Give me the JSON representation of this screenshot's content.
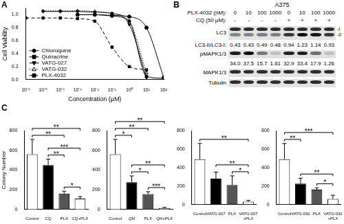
{
  "chart_data": [
    {
      "type": "line",
      "panel": "A",
      "x_label": "Concentration (µM)",
      "y_label": "Cell Viability",
      "log": "x",
      "grid": false,
      "legend": "bottom-left",
      "x": [
        1e-06,
        1e-05,
        0.0001,
        0.001,
        0.01,
        0.1,
        1,
        10,
        100
      ],
      "xlim": [
        1e-06,
        100
      ],
      "xticks": [
        {
          "value": 1e-06,
          "label": "10⁻⁶"
        },
        {
          "value": 1e-05,
          "label": "10⁻⁵"
        },
        {
          "value": 0.0001,
          "label": "10⁻⁴"
        },
        {
          "value": 0.001,
          "label": "10⁻³"
        },
        {
          "value": 0.01,
          "label": "10⁻²"
        },
        {
          "value": 0.1,
          "label": "10⁻¹"
        },
        {
          "value": 1,
          "label": "10⁰"
        },
        {
          "value": 10,
          "label": "10¹"
        },
        {
          "value": 100,
          "label": "10²"
        }
      ],
      "ylim": [
        0,
        1.1
      ],
      "yticks": [
        {
          "value": 0,
          "label": "0.0"
        },
        0.2,
        0.4,
        0.6,
        0.8,
        {
          "value": 1,
          "label": "1.0"
        }
      ],
      "series": [
        {
          "name": "Chloroquine",
          "color": "#000000",
          "marker": "circle",
          "line_style": "solid",
          "values": [
            null,
            null,
            null,
            1.0,
            1.0,
            0.99,
            0.97,
            0.8,
            0.03
          ]
        },
        {
          "name": "Quinacrine",
          "color": "#000000",
          "marker": "square",
          "line_style": "solid",
          "values": [
            null,
            null,
            null,
            1.0,
            1.0,
            0.98,
            0.9,
            0.05,
            0.02
          ]
        },
        {
          "name": "VATG-027",
          "color": "#000000",
          "marker": "triangle-down",
          "line_style": "solid",
          "values": [
            null,
            1.05,
            1.05,
            1.05,
            1.04,
            1.02,
            0.85,
            0.03,
            null
          ]
        },
        {
          "name": "VATG-032",
          "color": "#000000",
          "marker": "triangle-open",
          "line_style": "dotted",
          "values": [
            null,
            1.06,
            1.06,
            1.06,
            1.05,
            1.02,
            0.9,
            0.1,
            null
          ]
        },
        {
          "name": "PLX-4032",
          "color": "#000000",
          "marker": "square",
          "line_style": "dashed",
          "values": [
            0.95,
            0.95,
            0.95,
            0.94,
            0.9,
            0.5,
            0.2,
            0.15,
            null
          ]
        }
      ]
    },
    {
      "type": "bar",
      "panel": "C",
      "y_label": "Colony Number",
      "grid": false,
      "categories": [
        "Control",
        "CQ",
        "PLX",
        "CQ+PLX"
      ],
      "values": [
        560,
        450,
        160,
        110
      ],
      "errors": [
        150,
        60,
        25,
        20
      ],
      "colors": [
        "#ffffff",
        "#000000",
        "#555555",
        "#ffffff"
      ],
      "ylim": [
        0,
        800
      ],
      "yticks": [
        0,
        200,
        400,
        600,
        800
      ],
      "significance": [
        {
          "pair": [
            "Control",
            "CQ+PLX"
          ],
          "label": "**"
        },
        {
          "pair": [
            "Control",
            "PLX"
          ],
          "label": "**"
        },
        {
          "pair": [
            "CQ",
            "CQ+PLX"
          ],
          "label": "***"
        },
        {
          "pair": [
            "CQ",
            "PLX"
          ],
          "label": "**"
        },
        {
          "pair": [
            "PLX",
            "CQ+PLX"
          ],
          "label": "*"
        }
      ]
    },
    {
      "type": "bar",
      "grid": false,
      "categories": [
        "Control",
        "QN",
        "PLX",
        "QN+PLX"
      ],
      "values": [
        560,
        275,
        155,
        15
      ],
      "errors": [
        150,
        65,
        25,
        6
      ],
      "colors": [
        "#ffffff",
        "#000000",
        "#555555",
        "#ffffff"
      ],
      "ylim": [
        0,
        800
      ],
      "yticks": [
        0,
        200,
        400,
        600,
        800
      ],
      "significance": [
        {
          "pair": [
            "Control",
            "QN+PLX"
          ],
          "label": "**"
        },
        {
          "pair": [
            "Control",
            "PLX"
          ],
          "label": "**"
        },
        {
          "pair": [
            "Control",
            "QN"
          ],
          "label": "*"
        },
        {
          "pair": [
            "QN",
            "PLX"
          ],
          "label": "*"
        },
        {
          "pair": [
            "QN",
            "QN+PLX"
          ],
          "label": "**"
        },
        {
          "pair": [
            "PLX",
            "QN+PLX"
          ],
          "label": "***"
        }
      ]
    },
    {
      "type": "bar",
      "grid": false,
      "categories": [
        "Control",
        "VATG-027",
        "PLX",
        "VATG-027\n+PLX"
      ],
      "values": [
        490,
        280,
        210,
        30
      ],
      "errors": [
        170,
        70,
        100,
        15
      ],
      "colors": [
        "#ffffff",
        "#000000",
        "#555555",
        "#ffffff"
      ],
      "ylim": [
        0,
        800
      ],
      "yticks": [
        0,
        200,
        400,
        600,
        800
      ],
      "significance": [
        {
          "pair": [
            "Control",
            "VATG-027\n+PLX"
          ],
          "label": "**"
        },
        {
          "pair": [
            "VATG-027",
            "VATG-027\n+PLX"
          ],
          "label": "**"
        },
        {
          "pair": [
            "PLX",
            "VATG-027\n+PLX"
          ],
          "label": "*"
        }
      ]
    },
    {
      "type": "bar",
      "grid": false,
      "categories": [
        "Control",
        "VATG-032",
        "PLX",
        "VATG-032\n+PLX"
      ],
      "values": [
        490,
        225,
        160,
        60
      ],
      "errors": [
        170,
        60,
        20,
        40
      ],
      "colors": [
        "#ffffff",
        "#000000",
        "#555555",
        "#ffffff"
      ],
      "ylim": [
        0,
        800
      ],
      "yticks": [
        0,
        200,
        400,
        600,
        800
      ],
      "significance": [
        {
          "pair": [
            "Control",
            "VATG-032\n+PLX"
          ],
          "label": "***"
        },
        {
          "pair": [
            "Control",
            "VATG-032"
          ],
          "label": "**"
        },
        {
          "pair": [
            "VATG-032",
            "VATG-032\n+PLX"
          ],
          "label": "**"
        },
        {
          "pair": [
            "PLX",
            "VATG-032\n+PLX"
          ],
          "label": "*"
        }
      ]
    }
  ],
  "blot": {
    "panel": "B",
    "cell_line": "A375",
    "treatments": [
      {
        "label": "PLX-4032 (nM):",
        "values": [
          "0",
          "10",
          "100",
          "1000",
          "0",
          "10",
          "100",
          "1000"
        ]
      },
      {
        "label": "CQ (50 µM):",
        "values": [
          "-",
          "-",
          "-",
          "-",
          "+",
          "+",
          "+",
          "+"
        ]
      }
    ],
    "rows": [
      {
        "band": "LC3",
        "forms": [
          "-I",
          "-II"
        ]
      },
      {
        "label": "LC3-II/LC3-I:",
        "values": [
          "0.43",
          "0.43",
          "0.49",
          "0.48",
          "0.94",
          "1.23",
          "1.14",
          "0.93"
        ]
      },
      {
        "band": "pMAPK1/3"
      },
      {
        "values": [
          "34.0",
          "37.5",
          "15.7",
          "1.61",
          "32.9",
          "33.4",
          "17.9",
          "1.26"
        ]
      },
      {
        "band": "MAPK1/3"
      },
      {
        "band": "Tubulin"
      }
    ]
  }
}
